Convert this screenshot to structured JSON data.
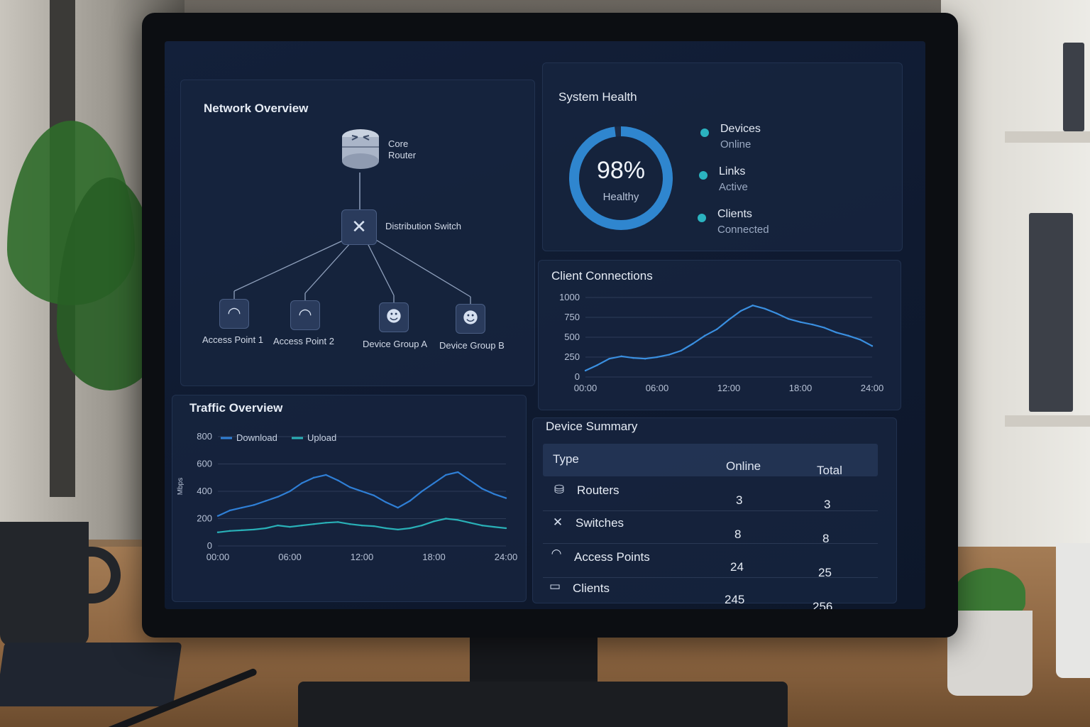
{
  "network_overview": {
    "title": "Network Overview",
    "core_router_line1": "Core",
    "core_router_line2": "Router",
    "distribution_switch": "Distribution Switch",
    "nodes": [
      {
        "label": "Access Point 1",
        "icon": "wifi-icon"
      },
      {
        "label": "Access Point 2",
        "icon": "wifi-icon"
      },
      {
        "label": "Device Group A",
        "icon": "users-icon"
      },
      {
        "label": "Device Group B",
        "icon": "users-icon"
      }
    ]
  },
  "system_health": {
    "title": "System Health",
    "percent_text": "98%",
    "status_text": "Healthy",
    "ring_fraction": 0.98,
    "ring_color": "#2f86cf",
    "legend": [
      {
        "line1": "Devices",
        "line2": "Online"
      },
      {
        "line1": "Links",
        "line2": "Active"
      },
      {
        "line1": "Clients",
        "line2": "Connected"
      }
    ]
  },
  "client_connections": {
    "title": "Client Connections"
  },
  "traffic_overview": {
    "title": "Traffic Overview"
  },
  "device_summary": {
    "title": "Device Summary",
    "headers": {
      "type": "Type",
      "online": "Online",
      "total": "Total"
    },
    "rows": [
      {
        "type": "Routers",
        "online": "3",
        "total": "3",
        "icon": "router-icon"
      },
      {
        "type": "Switches",
        "online": "8",
        "total": "8",
        "icon": "switch-icon"
      },
      {
        "type": "Access Points",
        "online": "24",
        "total": "25",
        "icon": "wifi-icon"
      },
      {
        "type": "Clients",
        "online": "245",
        "total": "256",
        "icon": "monitor-icon"
      }
    ]
  },
  "chart_data": [
    {
      "type": "line",
      "title": "Client Connections",
      "x": [
        "00:00",
        "01:00",
        "02:00",
        "03:00",
        "04:00",
        "05:00",
        "06:00",
        "07:00",
        "08:00",
        "09:00",
        "10:00",
        "11:00",
        "12:00",
        "13:00",
        "14:00",
        "15:00",
        "16:00",
        "17:00",
        "18:00",
        "19:00",
        "20:00",
        "21:00",
        "22:00",
        "23:00",
        "24:00"
      ],
      "xticks": [
        "00:00",
        "06:00",
        "12:00",
        "18:00",
        "24:00"
      ],
      "yticks": [
        "0",
        "250",
        "500",
        "750",
        "1000"
      ],
      "ylim": [
        0,
        1000
      ],
      "series": [
        {
          "color": "#3a8fe0",
          "values": [
            80,
            150,
            230,
            260,
            240,
            230,
            250,
            280,
            330,
            420,
            520,
            600,
            720,
            830,
            900,
            860,
            800,
            730,
            690,
            660,
            620,
            560,
            520,
            470,
            390
          ]
        }
      ],
      "grid": true
    },
    {
      "type": "line",
      "title": "Traffic Overview",
      "x": [
        "00:00",
        "01:00",
        "02:00",
        "03:00",
        "04:00",
        "05:00",
        "06:00",
        "07:00",
        "08:00",
        "09:00",
        "10:00",
        "11:00",
        "12:00",
        "13:00",
        "14:00",
        "15:00",
        "16:00",
        "17:00",
        "18:00",
        "19:00",
        "20:00",
        "21:00",
        "22:00",
        "23:00",
        "24:00"
      ],
      "xticks": [
        "00:00",
        "06:00",
        "12:00",
        "18:00",
        "24:00"
      ],
      "yticks": [
        "0",
        "200",
        "400",
        "600",
        "800"
      ],
      "ylim": [
        0,
        800
      ],
      "ylabel": "Mbps",
      "legend_position": "top-left",
      "series": [
        {
          "name": "Download",
          "color": "#2f7fd6",
          "values": [
            220,
            260,
            280,
            300,
            330,
            360,
            400,
            460,
            500,
            520,
            480,
            430,
            400,
            370,
            320,
            280,
            330,
            400,
            460,
            520,
            540,
            480,
            420,
            380,
            350
          ]
        },
        {
          "name": "Upload",
          "color": "#29b0b7",
          "values": [
            100,
            110,
            115,
            120,
            130,
            150,
            140,
            150,
            160,
            170,
            175,
            160,
            150,
            145,
            130,
            120,
            130,
            150,
            180,
            200,
            190,
            170,
            150,
            140,
            130
          ]
        }
      ],
      "grid": true
    }
  ]
}
